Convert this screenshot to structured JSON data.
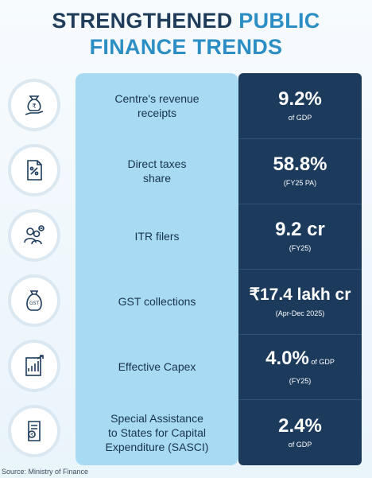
{
  "title": {
    "part1": "STRENGTHENED ",
    "part2": "PUBLIC",
    "part3": "FINANCE TRENDS"
  },
  "rows": [
    {
      "label_l1": "Centre's revenue",
      "label_l2": "receipts",
      "value": "9.2%",
      "unit": "",
      "sub": "of GDP",
      "icon": "rupee-bag-hand-icon"
    },
    {
      "label_l1": "Direct taxes",
      "label_l2": "share",
      "value": "58.8%",
      "unit": "",
      "sub": "(FY25 PA)",
      "icon": "tax-document-icon"
    },
    {
      "label_l1": "ITR filers",
      "label_l2": "",
      "value": "9.2 cr",
      "unit": "",
      "sub": "(FY25)",
      "icon": "people-filers-icon"
    },
    {
      "label_l1": "GST collections",
      "label_l2": "",
      "value": "₹17.4 lakh cr",
      "unit": "",
      "sub": "(Apr-Dec 2025)",
      "icon": "gst-money-bag-icon"
    },
    {
      "label_l1": "Effective Capex",
      "label_l2": "",
      "value": "4.0%",
      "unit": " of GDP",
      "sub": "(FY25)",
      "icon": "growth-chart-icon"
    },
    {
      "label_l1": "Special Assistance",
      "label_l2": "to States for Capital",
      "label_l3": "Expenditure (SASCI)",
      "value": "2.4%",
      "unit": "",
      "sub": "of GDP",
      "icon": "rupee-document-icon"
    }
  ],
  "source": "Source: Ministry of Finance",
  "colors": {
    "dark": "#1c3a5c",
    "light": "#a9daf3",
    "accent": "#2b8ec4"
  }
}
